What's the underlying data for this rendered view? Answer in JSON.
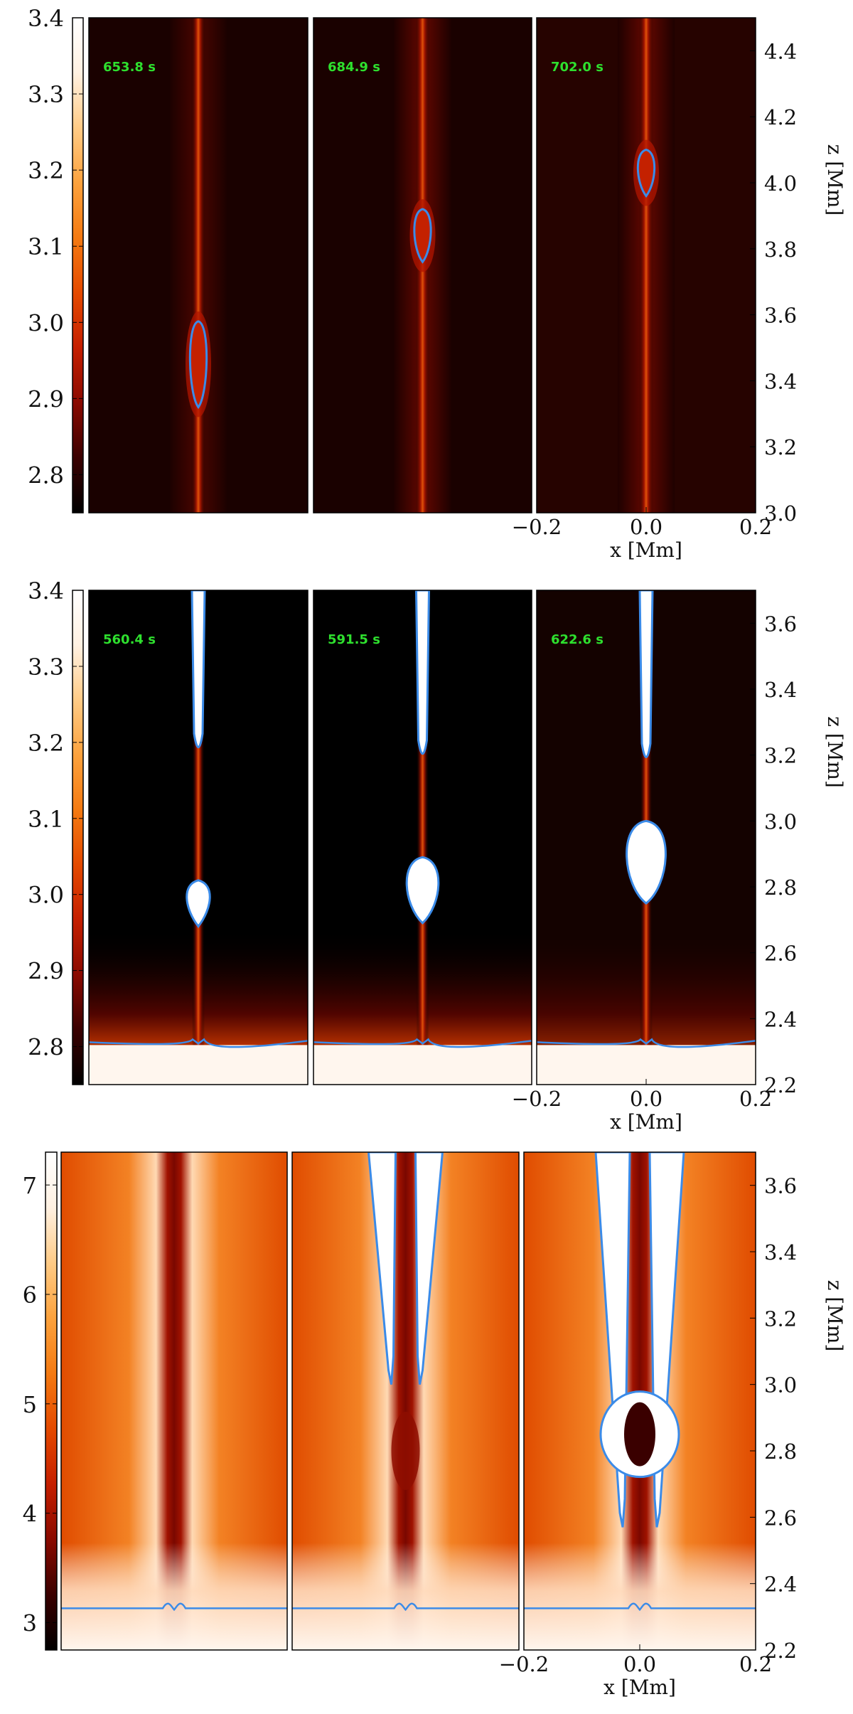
{
  "colors": {
    "time_label": "#2ee02e",
    "contour": "#3b8be8",
    "cmap": [
      "#000000",
      "#3a0000",
      "#8a0a00",
      "#c51f00",
      "#e44a00",
      "#f47a12",
      "#fca23d",
      "#ffcb86",
      "#fff1e2",
      "#ffffff"
    ]
  },
  "chart_data": [
    {
      "id": "row1",
      "type": "heatmap",
      "colorbar": {
        "range": [
          2.75,
          3.4
        ],
        "ticks": [
          "3.4",
          "3.3",
          "3.2",
          "3.1",
          "3.0",
          "2.9",
          "2.8"
        ],
        "tick_values": [
          3.4,
          3.3,
          3.2,
          3.1,
          3.0,
          2.9,
          2.8
        ]
      },
      "y_axis": {
        "label": "z [Mm]",
        "range": [
          3.0,
          4.5
        ],
        "ticks": [
          "4.4",
          "4.2",
          "4.0",
          "3.8",
          "3.6",
          "3.4",
          "3.2",
          "3.0"
        ],
        "tick_values": [
          4.4,
          4.2,
          4.0,
          3.8,
          3.6,
          3.4,
          3.2,
          3.0
        ]
      },
      "x_axis": {
        "label": "x [Mm]",
        "range": [
          -0.2,
          0.2
        ],
        "ticks": [
          "−0.2",
          "0.0",
          "0.2"
        ],
        "tick_values": [
          -0.2,
          0.0,
          0.2
        ]
      },
      "panels": [
        {
          "time": "653.8 s",
          "blob_z": [
            3.32,
            3.58
          ]
        },
        {
          "time": "684.9 s",
          "blob_z": [
            3.76,
            3.92
          ]
        },
        {
          "time": "702.0 s",
          "blob_z": [
            3.96,
            4.1
          ]
        }
      ]
    },
    {
      "id": "row2",
      "type": "heatmap",
      "colorbar": {
        "range": [
          2.75,
          3.4
        ],
        "ticks": [
          "3.4",
          "3.3",
          "3.2",
          "3.1",
          "3.0",
          "2.9",
          "2.8"
        ],
        "tick_values": [
          3.4,
          3.3,
          3.2,
          3.1,
          3.0,
          2.9,
          2.8
        ]
      },
      "y_axis": {
        "label": "z [Mm]",
        "range": [
          2.2,
          3.7
        ],
        "ticks": [
          "3.6",
          "3.4",
          "3.2",
          "3.0",
          "2.8",
          "2.6",
          "2.4",
          "2.2"
        ],
        "tick_values": [
          3.6,
          3.4,
          3.2,
          3.0,
          2.8,
          2.6,
          2.4,
          2.2
        ]
      },
      "x_axis": {
        "label": "x [Mm]",
        "range": [
          -0.2,
          0.2
        ],
        "ticks": [
          "−0.2",
          "0.0",
          "0.2"
        ],
        "tick_values": [
          -0.2,
          0.0,
          0.2
        ]
      },
      "panels": [
        {
          "time": "560.4 s",
          "upper_tip_z": 3.2,
          "blob_z": [
            2.68,
            2.82
          ]
        },
        {
          "time": "591.5 s",
          "upper_tip_z": 3.18,
          "blob_z": [
            2.69,
            2.89
          ]
        },
        {
          "time": "622.6 s",
          "upper_tip_z": 3.17,
          "blob_z": [
            2.75,
            3.0
          ]
        }
      ]
    },
    {
      "id": "row3",
      "type": "heatmap",
      "colorbar": {
        "range": [
          2.75,
          7.3
        ],
        "ticks": [
          "7",
          "6",
          "5",
          "4",
          "3"
        ],
        "tick_values": [
          7,
          6,
          5,
          4,
          3
        ]
      },
      "y_axis": {
        "label": "z [Mm]",
        "range": [
          2.2,
          3.7
        ],
        "ticks": [
          "3.6",
          "3.4",
          "3.2",
          "3.0",
          "2.8",
          "2.6",
          "2.4",
          "2.2"
        ],
        "tick_values": [
          3.6,
          3.4,
          3.2,
          3.0,
          2.8,
          2.6,
          2.4,
          2.2
        ]
      },
      "x_axis": {
        "label": "x [Mm]",
        "range": [
          -0.2,
          0.2
        ],
        "ticks": [
          "−0.2",
          "0.0",
          "0.2"
        ],
        "tick_values": [
          -0.2,
          0.0,
          0.2
        ]
      },
      "panels": [
        {
          "time": ""
        },
        {
          "time": ""
        },
        {
          "time": ""
        }
      ]
    }
  ]
}
